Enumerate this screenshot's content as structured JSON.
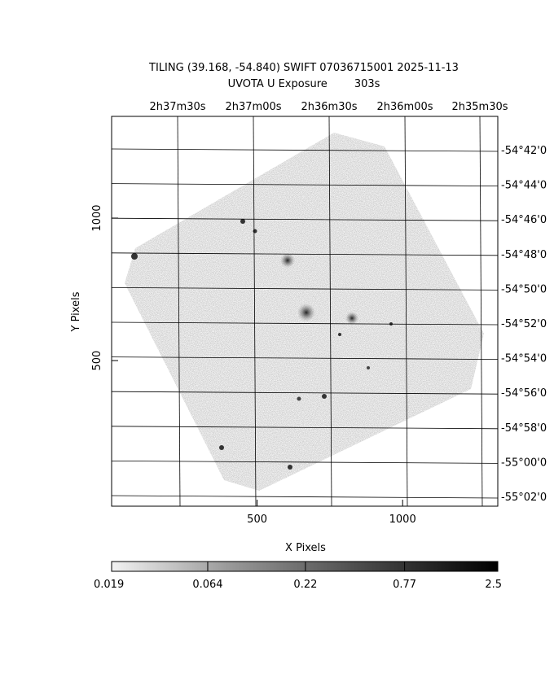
{
  "chart_data": {
    "type": "image",
    "title": "TILING (39.168, -54.840) SWIFT 07036715001 2025-11-13",
    "subtitle": "UVOTA U Exposure        303s",
    "x_label": "X Pixels",
    "y_label": "Y Pixels",
    "xlim": [
      0,
      1327
    ],
    "xticks": [
      500,
      1000
    ],
    "ylim": [
      -11,
      1357
    ],
    "yticks": [
      500,
      1000
    ],
    "ra_ticks": [
      "2h37m30s",
      "2h37m00s",
      "2h36m30s",
      "2h36m00s",
      "2h35m30s"
    ],
    "dec_ticks": [
      "-54°42'0",
      "-54°44'0",
      "-54°46'0",
      "-54°48'0",
      "-54°50'0",
      "-54°52'0",
      "-54°54'0",
      "-54°56'0",
      "-54°58'0",
      "-55°00'0",
      "-55°02'0"
    ],
    "colorbar": {
      "lim": [
        0.019,
        2.5
      ],
      "ticks": [
        0.019,
        0.064,
        0.22,
        0.77,
        2.5
      ],
      "log": true
    }
  }
}
